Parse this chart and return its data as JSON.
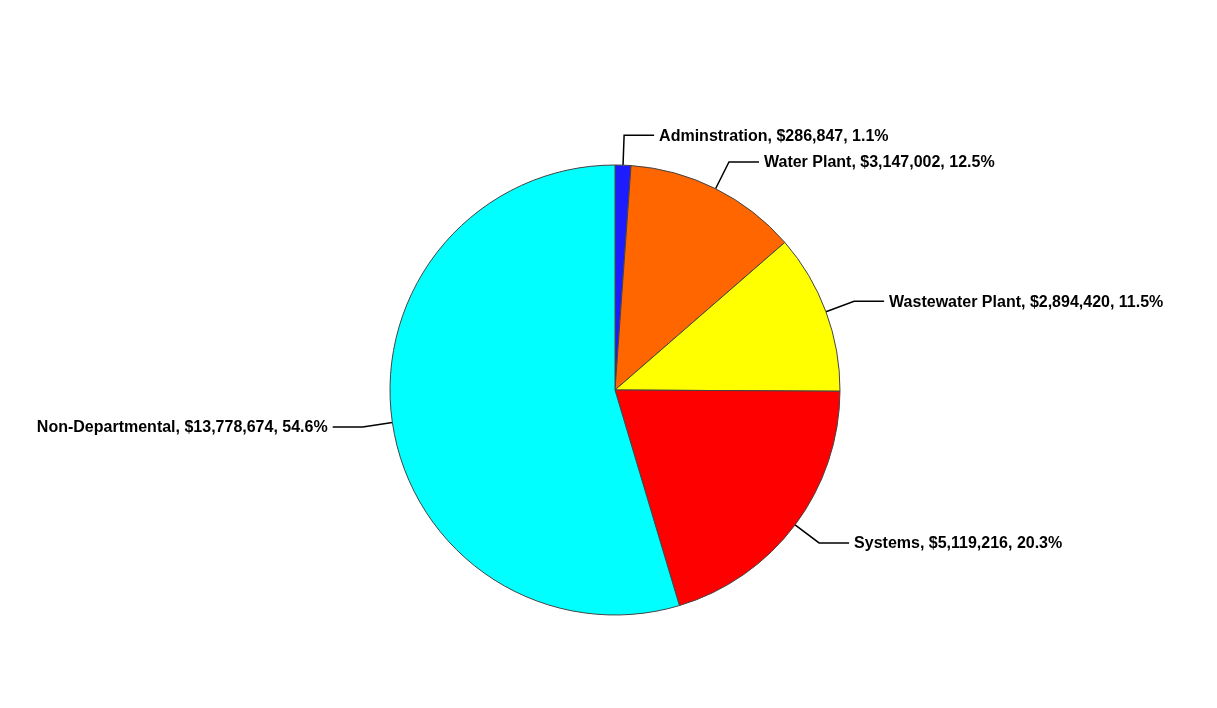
{
  "chart_data": {
    "type": "pie",
    "categories": [
      "Adminstration",
      "Water Plant",
      "Wastewater Plant",
      "Systems",
      "Non-Departmental"
    ],
    "values": [
      286847,
      3147002,
      2894420,
      5119216,
      13778674
    ],
    "value_labels": [
      "$286,847, 1.1%",
      "$3,147,002, 12.5%",
      "$2,894,420, 11.5%",
      "$5,119,216, 20.3%",
      "$13,778,674, 54.6%"
    ],
    "colors": [
      "#1c1cff",
      "#ff6600",
      "#ffff00",
      "#ff0000",
      "#00ffff"
    ]
  }
}
